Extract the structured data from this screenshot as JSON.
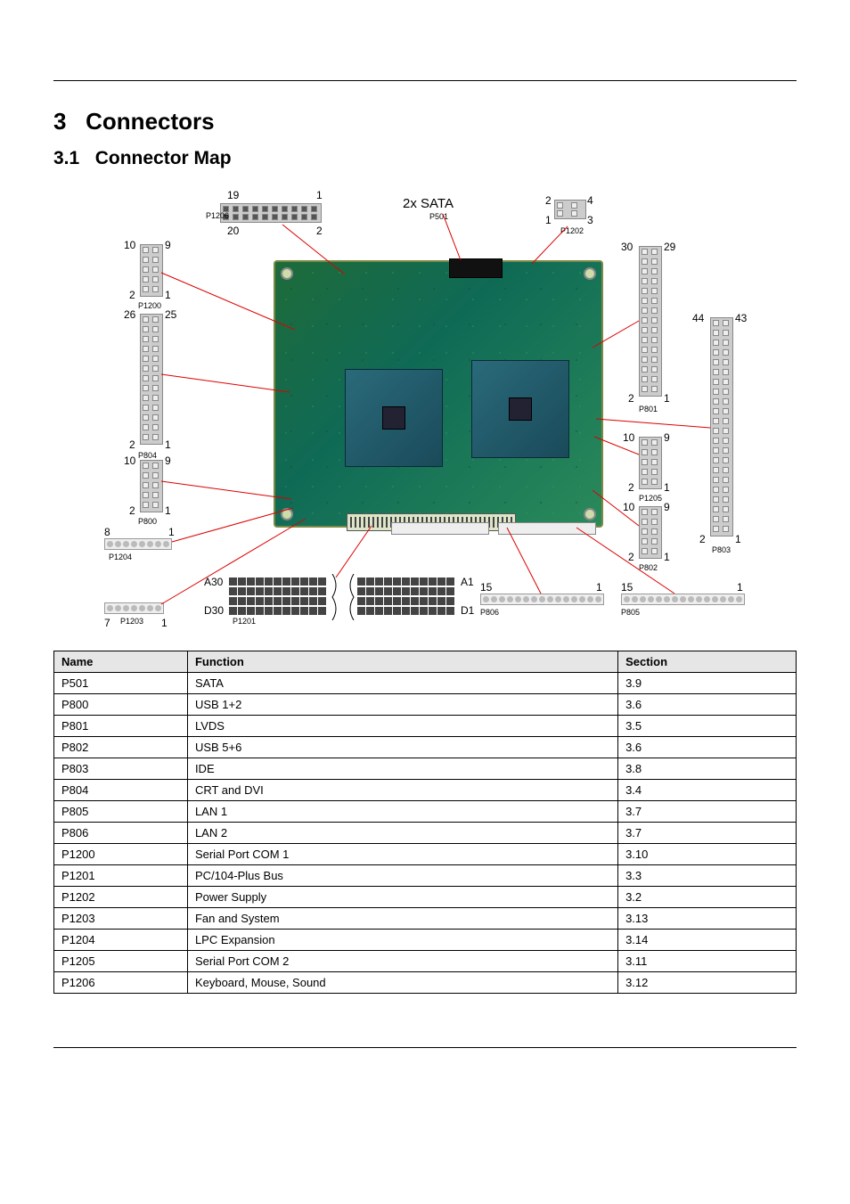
{
  "section_number": "3",
  "section_title": "Connectors",
  "subsection_number": "3.1",
  "subsection_title": "Connector Map",
  "diagram_labels": {
    "sata": "2x SATA",
    "sata_ref": "P501",
    "p1206_top_left": "19",
    "p1206_top_right": "1",
    "p1206_bot_left": "20",
    "p1206_bot_right": "2",
    "p1206_ref": "P1206",
    "p1202_tl": "2",
    "p1202_tr": "4",
    "p1202_bl": "1",
    "p1202_br": "3",
    "p1202_ref": "P1202",
    "p1200_top_l": "10",
    "p1200_top_r": "9",
    "p1200_bot_l": "2",
    "p1200_bot_r": "1",
    "p1200_ref": "P1200",
    "p804_top_l": "26",
    "p804_top_r": "25",
    "p804_bot_l": "2",
    "p804_bot_r": "1",
    "p804_ref": "P804",
    "p800_top_l": "10",
    "p800_top_r": "9",
    "p800_bot_l": "2",
    "p800_bot_r": "1",
    "p800_ref": "P800",
    "p1204_l": "8",
    "p1204_r": "1",
    "p1204_ref": "P1204",
    "p1203_l": "7",
    "p1203_r": "1",
    "p1203_ref": "P1203",
    "p1201_a_l": "A30",
    "p1201_a_r": "A1",
    "p1201_d_l": "D30",
    "p1201_d_r": "D1",
    "p1201_ref": "P1201",
    "p801_top_l": "30",
    "p801_top_r": "29",
    "p801_bot_l": "2",
    "p801_bot_r": "1",
    "p801_ref": "P801",
    "p803_top_l": "44",
    "p803_top_r": "43",
    "p803_bot_l": "2",
    "p803_bot_r": "1",
    "p803_ref": "P803",
    "p1205_top_l": "10",
    "p1205_top_r": "9",
    "p1205_bot_l": "2",
    "p1205_bot_r": "1",
    "p1205_ref": "P1205",
    "p802_top_l": "10",
    "p802_top_r": "9",
    "p802_bot_l": "2",
    "p802_bot_r": "1",
    "p802_ref": "P802",
    "p806_l": "15",
    "p806_r": "1",
    "p806_ref": "P806",
    "p805_l": "15",
    "p805_r": "1",
    "p805_ref": "P805"
  },
  "table": {
    "columns": [
      "Name",
      "Function",
      "Section"
    ],
    "rows": [
      [
        "P501",
        "SATA",
        "3.9"
      ],
      [
        "P800",
        "USB 1+2",
        "3.6"
      ],
      [
        "P801",
        "LVDS",
        "3.5"
      ],
      [
        "P802",
        "USB 5+6",
        "3.6"
      ],
      [
        "P803",
        "IDE",
        "3.8"
      ],
      [
        "P804",
        "CRT and DVI",
        "3.4"
      ],
      [
        "P805",
        "LAN 1",
        "3.7"
      ],
      [
        "P806",
        "LAN 2",
        "3.7"
      ],
      [
        "P1200",
        "Serial Port COM 1",
        "3.10"
      ],
      [
        "P1201",
        "PC/104-Plus Bus",
        "3.3"
      ],
      [
        "P1202",
        "Power Supply",
        "3.2"
      ],
      [
        "P1203",
        "Fan and System",
        "3.13"
      ],
      [
        "P1204",
        "LPC Expansion",
        "3.14"
      ],
      [
        "P1205",
        "Serial Port COM 2",
        "3.11"
      ],
      [
        "P1206",
        "Keyboard, Mouse, Sound",
        "3.12"
      ]
    ]
  },
  "styling": {
    "page_bg": "#ffffff",
    "rule_color": "#000000",
    "table_header_bg": "#e6e6e6",
    "board_color": "#1e6b3a",
    "chip_color": "#2a6a7a",
    "leader_color": "#d00000",
    "font_family": "Arial",
    "title_fontsize_pt": 20,
    "subtitle_fontsize_pt": 16,
    "table_fontsize_pt": 10,
    "label_fontsize_pt": 9
  }
}
